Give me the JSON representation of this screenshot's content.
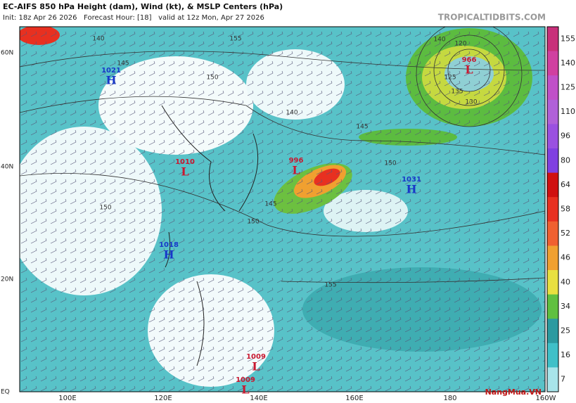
{
  "header": {
    "title": "EC-AIFS 850 hPa Height (dam), Wind (kt), & MSLP Centers (hPa)",
    "subtitle": "Init: 18z Apr 26 2026   Forecast Hour: [18]   valid at 12z Mon, Apr 27 2026",
    "site": "TROPICALTIDBITS.COM"
  },
  "colorbar": {
    "levels": [
      155,
      140,
      125,
      110,
      96,
      80,
      64,
      58,
      52,
      46,
      40,
      34,
      25,
      16,
      7
    ],
    "colors": [
      "#c8307a",
      "#d040a0",
      "#c050c8",
      "#b060d8",
      "#9a50e0",
      "#8040e0",
      "#d01010",
      "#e83020",
      "#f06030",
      "#f0a030",
      "#e8e040",
      "#60c040",
      "#2c9aa0",
      "#40c0c8",
      "#a8e4ea"
    ]
  },
  "lat_labels": [
    "60N",
    "40N",
    "20N",
    "EQ"
  ],
  "lon_labels": [
    "100E",
    "120E",
    "140E",
    "160E",
    "180",
    "160W"
  ],
  "centers": [
    {
      "value": "1021",
      "type": "H"
    },
    {
      "value": "1010",
      "type": "L"
    },
    {
      "value": "996",
      "type": "L"
    },
    {
      "value": "1031",
      "type": "H"
    },
    {
      "value": "966",
      "type": "L"
    },
    {
      "value": "1018",
      "type": "H"
    },
    {
      "value": "1009",
      "type": "L"
    },
    {
      "value": "1009",
      "type": "L"
    }
  ],
  "contour_labels": [
    "140",
    "145",
    "150",
    "155",
    "140",
    "145",
    "150",
    "155",
    "120",
    "125",
    "130",
    "135",
    "140",
    "145",
    "150",
    "150"
  ],
  "watermark": "NangMua.VN"
}
